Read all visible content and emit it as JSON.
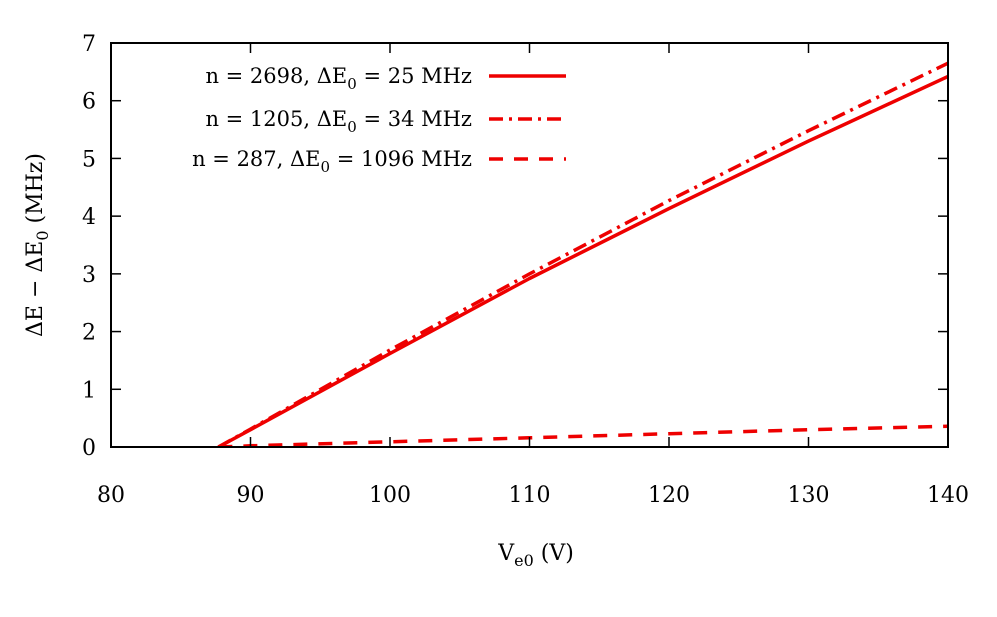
{
  "chart_data": {
    "type": "line",
    "xlabel": {
      "main": "V",
      "sub": "e0",
      "tail": " (V)"
    },
    "ylabel": {
      "p1": "ΔE − ΔE",
      "sub": "0",
      "p2": " (MHz)"
    },
    "xlim": [
      80,
      140
    ],
    "ylim": [
      0,
      7
    ],
    "xticks": [
      80,
      90,
      100,
      110,
      120,
      130,
      140
    ],
    "yticks": [
      0,
      1,
      2,
      3,
      4,
      5,
      6,
      7
    ],
    "xtick_labels": [
      "80",
      "90",
      "100",
      "110",
      "120",
      "130",
      "140"
    ],
    "ytick_labels": [
      "0",
      "1",
      "2",
      "3",
      "4",
      "5",
      "6",
      "7"
    ],
    "grid": false,
    "legend_position": "top-left",
    "series": [
      {
        "label_pre": "n = 2698, ΔE",
        "label_sub": "0",
        "label_post": " = 25 MHz",
        "color": "#ee0000",
        "style": "solid",
        "x": [
          87.7,
          90,
          100,
          110,
          120,
          130,
          140
        ],
        "y": [
          0,
          0.3,
          1.62,
          2.92,
          4.13,
          5.3,
          6.42
        ]
      },
      {
        "label_pre": "n = 1205, ΔE",
        "label_sub": "0",
        "label_post": " = 34 MHz",
        "color": "#ee0000",
        "style": "dashdot",
        "x": [
          87.7,
          90,
          100,
          110,
          120,
          130,
          140
        ],
        "y": [
          0,
          0.31,
          1.68,
          3.0,
          4.27,
          5.48,
          6.65
        ]
      },
      {
        "label_pre": "n = 287, ΔE",
        "label_sub": "0",
        "label_post": " = 1096 MHz",
        "color": "#ee0000",
        "style": "dashed",
        "x": [
          87.7,
          90,
          100,
          110,
          120,
          130,
          140
        ],
        "y": [
          0,
          0.02,
          0.09,
          0.16,
          0.23,
          0.3,
          0.36
        ]
      }
    ]
  }
}
